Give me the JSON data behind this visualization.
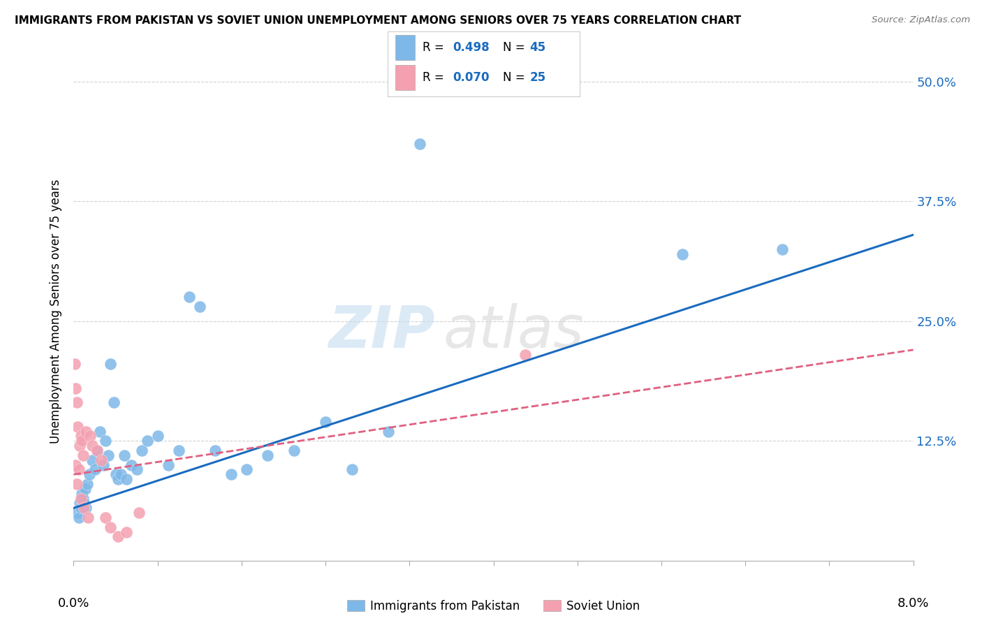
{
  "title": "IMMIGRANTS FROM PAKISTAN VS SOVIET UNION UNEMPLOYMENT AMONG SENIORS OVER 75 YEARS CORRELATION CHART",
  "source": "Source: ZipAtlas.com",
  "ylabel": "Unemployment Among Seniors over 75 years",
  "xlim": [
    0.0,
    8.0
  ],
  "ylim": [
    0.0,
    52.0
  ],
  "yticks": [
    0.0,
    12.5,
    25.0,
    37.5,
    50.0
  ],
  "ytick_right_labels": [
    "",
    "12.5%",
    "25.0%",
    "37.5%",
    "50.0%"
  ],
  "xticks": [
    0.0,
    0.8,
    1.6,
    2.4,
    3.2,
    4.0,
    4.8,
    5.6,
    6.4,
    7.2,
    8.0
  ],
  "pakistan_color": "#7eb8e8",
  "soviet_color": "#f4a0b0",
  "pakistan_line_color": "#1a6bbf",
  "soviet_line_color": "#e06080",
  "pakistan_R": 0.498,
  "pakistan_N": 45,
  "soviet_R": 0.07,
  "soviet_N": 25,
  "legend_label_pakistan": "Immigrants from Pakistan",
  "legend_label_soviet": "Soviet Union",
  "pakistan_x": [
    0.04,
    0.05,
    0.06,
    0.07,
    0.08,
    0.09,
    0.1,
    0.11,
    0.12,
    0.13,
    0.15,
    0.18,
    0.2,
    0.22,
    0.25,
    0.28,
    0.3,
    0.33,
    0.35,
    0.38,
    0.4,
    0.42,
    0.45,
    0.48,
    0.5,
    0.55,
    0.6,
    0.65,
    0.7,
    0.8,
    0.9,
    1.0,
    1.1,
    1.2,
    1.35,
    1.5,
    1.65,
    1.85,
    2.1,
    2.4,
    2.65,
    3.0,
    3.3,
    5.8,
    6.75
  ],
  "pakistan_y": [
    5.0,
    4.5,
    6.0,
    5.5,
    7.0,
    6.5,
    6.0,
    7.5,
    5.5,
    8.0,
    9.0,
    10.5,
    9.5,
    11.5,
    13.5,
    10.0,
    12.5,
    11.0,
    20.5,
    16.5,
    9.0,
    8.5,
    9.0,
    11.0,
    8.5,
    10.0,
    9.5,
    11.5,
    12.5,
    13.0,
    10.0,
    11.5,
    27.5,
    26.5,
    11.5,
    9.0,
    9.5,
    11.0,
    11.5,
    14.5,
    9.5,
    13.5,
    43.5,
    32.0,
    32.5
  ],
  "soviet_x": [
    0.01,
    0.02,
    0.02,
    0.03,
    0.03,
    0.04,
    0.05,
    0.06,
    0.07,
    0.07,
    0.08,
    0.09,
    0.1,
    0.12,
    0.14,
    0.16,
    0.18,
    0.22,
    0.26,
    0.3,
    0.35,
    0.42,
    0.5,
    0.62,
    4.3
  ],
  "soviet_y": [
    20.5,
    18.0,
    10.0,
    16.5,
    8.0,
    14.0,
    9.5,
    12.0,
    13.0,
    6.5,
    12.5,
    11.0,
    5.5,
    13.5,
    4.5,
    13.0,
    12.0,
    11.5,
    10.5,
    4.5,
    3.5,
    2.5,
    3.0,
    5.0,
    21.5
  ],
  "pk_trend_x0": 0.0,
  "pk_trend_x1": 8.0,
  "pk_trend_y0": 5.5,
  "pk_trend_y1": 34.0,
  "sv_trend_x0": 0.0,
  "sv_trend_x1": 8.0,
  "sv_trend_y0": 9.0,
  "sv_trend_y1": 22.0,
  "watermark_zip": "ZIP",
  "watermark_atlas": "atlas"
}
